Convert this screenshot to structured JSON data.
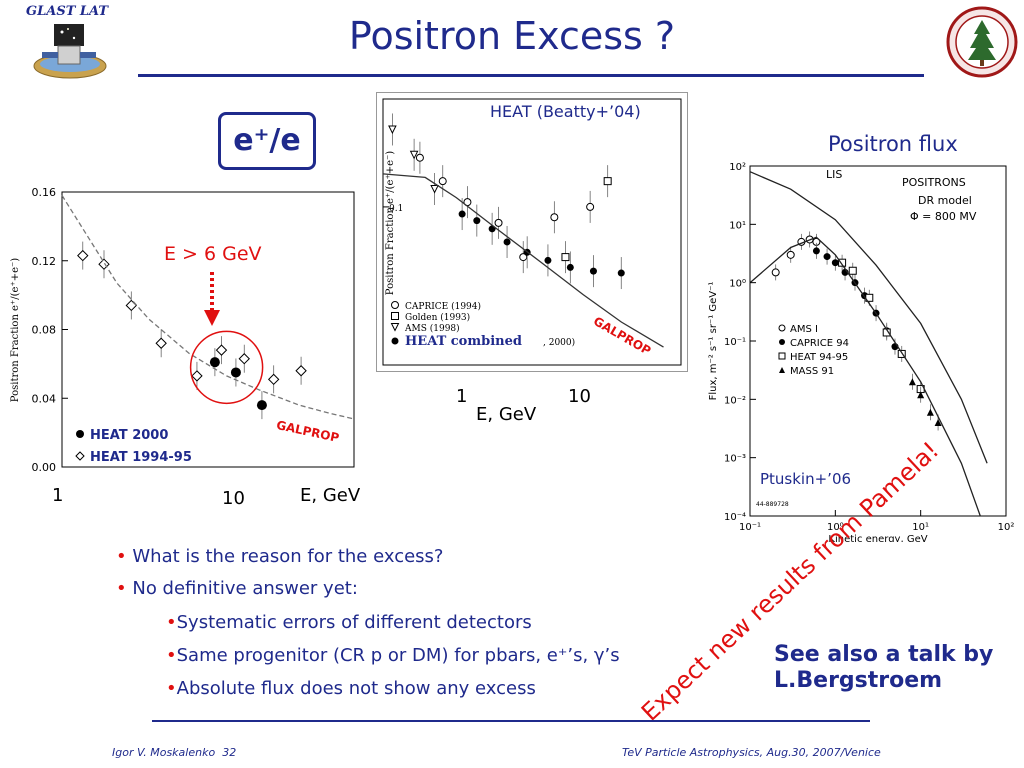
{
  "slide": {
    "title": "Positron Excess ?",
    "logo_text": "GLAST LAT",
    "footer_left": "Igor V. Moskalenko",
    "page_number": "32",
    "footer_right": "TeV Particle Astrophysics, Aug.30, 2007/Venice"
  },
  "labels": {
    "ratio_box": "e⁺/e",
    "energy_cut": "E > 6 GeV",
    "heat_beatty": "HEAT (Beatty+’04)",
    "positron_flux": "Positron flux",
    "galprop": "GALPROP",
    "heat_combined": "HEAT combined",
    "ptuskin": "Ptuskin+’06",
    "left_x_1": "1",
    "left_x_10": "10",
    "left_x_unit": "E, GeV",
    "mid_x_1": "1",
    "mid_x_10": "10",
    "mid_x_unit": "E, GeV",
    "diagonal": "Expect new results from Pamela!",
    "see_also": "See also a talk by L.Bergstroem"
  },
  "bullets": [
    {
      "text": "What is the reason for the excess?"
    },
    {
      "text": "No definitive answer yet:"
    },
    {
      "text": "Systematic errors of different detectors"
    },
    {
      "text": "Same progenitor (CR p or DM) for pbars, e⁺’s, γ’s"
    },
    {
      "text": "Absolute flux does not show any excess"
    }
  ],
  "colors": {
    "title": "#1f2a8c",
    "accent": "#e01010",
    "model": "#555555"
  },
  "chart_data": [
    {
      "type": "scatter",
      "xscale": "log",
      "xlim": [
        1,
        40
      ],
      "ylim": [
        0,
        0.16
      ],
      "ylabel": "Positron Fraction e⁺/(e⁺+e⁻)",
      "yticks": [
        "0.00",
        "0.04",
        "0.08",
        "0.12",
        "0.16"
      ],
      "legend": [
        "HEAT 2000",
        "HEAT 1994-95"
      ],
      "series": [
        {
          "name": "HEAT 2000",
          "marker": "filled-circle",
          "x": [
            6.9,
            9.0,
            12.5
          ],
          "y": [
            0.061,
            0.055,
            0.036
          ]
        },
        {
          "name": "HEAT 1994-95",
          "marker": "open-diamond",
          "x": [
            1.3,
            1.7,
            2.4,
            3.5,
            5.5,
            7.5,
            10,
            14.5,
            20.5
          ],
          "y": [
            0.123,
            0.118,
            0.094,
            0.072,
            0.053,
            0.068,
            0.063,
            0.051,
            0.056
          ]
        },
        {
          "name": "GALPROP",
          "style": "dashed",
          "x": [
            1,
            2,
            3,
            5,
            8,
            12,
            20,
            30,
            40
          ],
          "y": [
            0.158,
            0.107,
            0.086,
            0.066,
            0.053,
            0.045,
            0.036,
            0.031,
            0.028
          ]
        }
      ]
    },
    {
      "type": "scatter",
      "xscale": "log",
      "yscale": "log",
      "xlim": [
        0.3,
        40
      ],
      "ylim": [
        0.02,
        0.3
      ],
      "ylabel": "Positron Fraction e⁺/(e⁺+e⁻)",
      "ytick_label": "0.1",
      "legend": [
        "CAPRICE (1994)",
        "Golden (1993)",
        "AMS (1998)",
        "HEAT combined"
      ],
      "legend_tail": ", 2000)",
      "series": [
        {
          "name": "CAPRICE (1994)",
          "marker": "open-circle",
          "x": [
            0.55,
            0.8,
            1.2,
            2.0,
            3.0,
            5.0,
            9.0
          ],
          "y": [
            0.165,
            0.13,
            0.105,
            0.085,
            0.06,
            0.09,
            0.1
          ]
        },
        {
          "name": "Golden (1993)",
          "marker": "open-square",
          "x": [
            6,
            12
          ],
          "y": [
            0.06,
            0.13
          ]
        },
        {
          "name": "AMS (1998)",
          "marker": "open-triangle",
          "x": [
            0.35,
            0.5,
            0.7
          ],
          "y": [
            0.22,
            0.17,
            0.12
          ]
        },
        {
          "name": "HEAT combined",
          "marker": "filled-circle",
          "x": [
            1.1,
            1.4,
            1.8,
            2.3,
            3.2,
            4.5,
            6.5,
            9.5,
            15
          ],
          "y": [
            0.093,
            0.087,
            0.08,
            0.07,
            0.063,
            0.058,
            0.054,
            0.052,
            0.051
          ]
        },
        {
          "name": "GALPROP",
          "style": "solid",
          "x": [
            0.3,
            0.6,
            1,
            2,
            4,
            8,
            15,
            30
          ],
          "y": [
            0.14,
            0.135,
            0.11,
            0.079,
            0.057,
            0.041,
            0.031,
            0.024
          ]
        }
      ]
    },
    {
      "type": "scatter",
      "xscale": "log",
      "yscale": "log",
      "xlim": [
        0.1,
        100
      ],
      "ylim": [
        0.0001,
        100
      ],
      "xlabel": "Kinetic energy, GeV",
      "ylabel": "Flux, m⁻² s⁻¹ sr⁻¹ GeV⁻¹",
      "xticks": [
        "10⁻¹",
        "10⁰",
        "10¹",
        "10²"
      ],
      "yticks": [
        "10⁻⁴",
        "10⁻³",
        "10⁻²",
        "10⁻¹",
        "10⁰",
        "10¹",
        "10²"
      ],
      "annotations": [
        "LIS",
        "POSITRONS",
        "DR model",
        "Φ = 800 MV",
        "44-889728"
      ],
      "legend": [
        "AMS I",
        "CAPRICE 94",
        "HEAT 94-95",
        "MASS 91"
      ],
      "series": [
        {
          "name": "AMS I",
          "marker": "open-circle",
          "x": [
            0.2,
            0.3,
            0.4,
            0.5,
            0.6
          ],
          "y": [
            1.5,
            3,
            5,
            5.5,
            5
          ]
        },
        {
          "name": "CAPRICE 94",
          "marker": "filled-circle",
          "x": [
            0.6,
            0.8,
            1.0,
            1.3,
            1.7,
            2.2,
            3,
            4,
            5
          ],
          "y": [
            3.5,
            2.8,
            2.2,
            1.5,
            1,
            0.6,
            0.3,
            0.15,
            0.08
          ]
        },
        {
          "name": "HEAT 94-95",
          "marker": "open-square",
          "x": [
            1.2,
            1.6,
            2.5,
            4,
            6,
            10
          ],
          "y": [
            2.2,
            1.6,
            0.55,
            0.14,
            0.06,
            0.015
          ]
        },
        {
          "name": "MASS 91",
          "marker": "filled-triangle",
          "x": [
            8,
            10,
            13,
            16
          ],
          "y": [
            0.02,
            0.012,
            0.006,
            0.004
          ]
        },
        {
          "name": "LIS",
          "style": "solid",
          "x": [
            0.1,
            0.3,
            1,
            3,
            10,
            30,
            60
          ],
          "y": [
            80,
            40,
            12,
            2,
            0.2,
            0.01,
            0.0008
          ]
        },
        {
          "name": "DR model",
          "style": "solid",
          "x": [
            0.1,
            0.3,
            0.6,
            1,
            3,
            10,
            30,
            50
          ],
          "y": [
            1,
            4,
            6,
            3,
            0.3,
            0.02,
            0.0008,
            0.0001
          ]
        }
      ]
    }
  ]
}
